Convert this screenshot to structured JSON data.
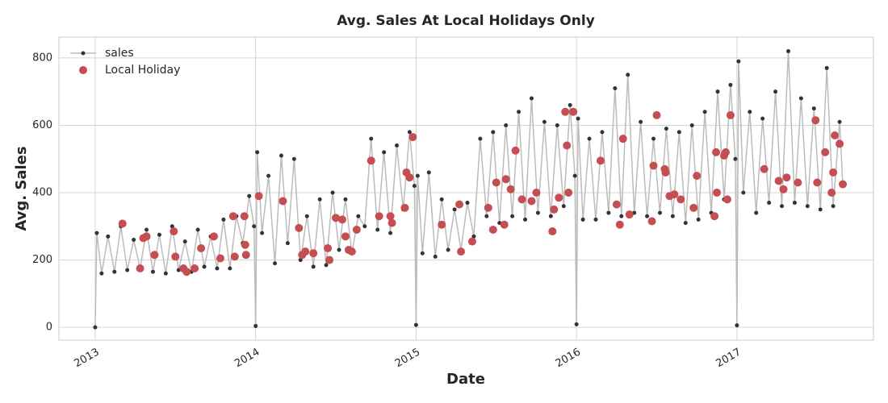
{
  "chart_data": {
    "type": "line",
    "title": "Avg. Sales At Local Holidays Only",
    "xlabel": "Date",
    "ylabel": "Avg. Sales",
    "xlim": [
      2012.774,
      2017.851
    ],
    "xticks": [
      2013,
      2014,
      2015,
      2016,
      2017
    ],
    "ylim": [
      -38,
      862
    ],
    "yticks": [
      0,
      200,
      400,
      600,
      800
    ],
    "grid": true,
    "legend": "upper left",
    "series": [
      {
        "name": "sales",
        "color": "#333333",
        "line_color": "#bbbbbb",
        "x": [
          2013.0,
          2013.01,
          2013.04,
          2013.08,
          2013.12,
          2013.16,
          2013.2,
          2013.24,
          2013.28,
          2013.32,
          2013.36,
          2013.4,
          2013.44,
          2013.48,
          2013.52,
          2013.56,
          2013.6,
          2013.64,
          2013.68,
          2013.72,
          2013.76,
          2013.8,
          2013.84,
          2013.88,
          2013.92,
          2013.96,
          2013.99,
          2014.0,
          2014.01,
          2014.04,
          2014.08,
          2014.12,
          2014.16,
          2014.2,
          2014.24,
          2014.28,
          2014.32,
          2014.36,
          2014.4,
          2014.44,
          2014.48,
          2014.52,
          2014.56,
          2014.6,
          2014.64,
          2014.68,
          2014.72,
          2014.76,
          2014.8,
          2014.84,
          2014.88,
          2014.92,
          2014.96,
          2014.99,
          2015.0,
          2015.01,
          2015.04,
          2015.08,
          2015.12,
          2015.16,
          2015.2,
          2015.24,
          2015.28,
          2015.32,
          2015.36,
          2015.4,
          2015.44,
          2015.48,
          2015.52,
          2015.56,
          2015.6,
          2015.64,
          2015.68,
          2015.72,
          2015.76,
          2015.8,
          2015.84,
          2015.88,
          2015.92,
          2015.96,
          2015.99,
          2016.0,
          2016.01,
          2016.04,
          2016.08,
          2016.12,
          2016.16,
          2016.2,
          2016.24,
          2016.28,
          2016.32,
          2016.36,
          2016.4,
          2016.44,
          2016.48,
          2016.52,
          2016.56,
          2016.6,
          2016.64,
          2016.68,
          2016.72,
          2016.76,
          2016.8,
          2016.84,
          2016.88,
          2016.92,
          2016.96,
          2016.99,
          2017.0,
          2017.01,
          2017.04,
          2017.08,
          2017.12,
          2017.16,
          2017.2,
          2017.24,
          2017.28,
          2017.32,
          2017.36,
          2017.4,
          2017.44,
          2017.48,
          2017.52,
          2017.56,
          2017.6,
          2017.64,
          2017.66
        ],
        "values": [
          0,
          280,
          160,
          270,
          165,
          300,
          170,
          260,
          175,
          290,
          165,
          275,
          160,
          300,
          170,
          255,
          165,
          290,
          180,
          270,
          175,
          320,
          175,
          330,
          250,
          390,
          300,
          4,
          520,
          280,
          450,
          190,
          510,
          250,
          500,
          200,
          330,
          180,
          380,
          185,
          400,
          230,
          380,
          220,
          330,
          300,
          560,
          290,
          520,
          280,
          540,
          350,
          580,
          420,
          7,
          450,
          220,
          460,
          210,
          380,
          230,
          350,
          230,
          370,
          270,
          560,
          330,
          580,
          310,
          600,
          330,
          640,
          320,
          680,
          340,
          610,
          330,
          600,
          360,
          660,
          450,
          9,
          620,
          320,
          560,
          320,
          580,
          340,
          710,
          330,
          750,
          340,
          610,
          330,
          560,
          340,
          590,
          330,
          580,
          310,
          600,
          320,
          640,
          340,
          700,
          380,
          720,
          500,
          6,
          790,
          400,
          640,
          340,
          620,
          370,
          700,
          360,
          820,
          370,
          680,
          360,
          650,
          350,
          770,
          360,
          610,
          420
        ]
      },
      {
        "name": "Local Holiday",
        "color": "#c44e52",
        "x": [
          2013.17,
          2013.28,
          2013.3,
          2013.32,
          2013.37,
          2013.49,
          2013.5,
          2013.55,
          2013.57,
          2013.62,
          2013.66,
          2013.74,
          2013.78,
          2013.86,
          2013.87,
          2013.93,
          2013.935,
          2013.94,
          2014.02,
          2014.17,
          2014.27,
          2014.29,
          2014.31,
          2014.36,
          2014.45,
          2014.46,
          2014.5,
          2014.54,
          2014.56,
          2014.58,
          2014.6,
          2014.63,
          2014.72,
          2014.77,
          2014.84,
          2014.85,
          2014.93,
          2014.94,
          2014.96,
          2014.98,
          2015.16,
          2015.27,
          2015.28,
          2015.35,
          2015.45,
          2015.48,
          2015.5,
          2015.55,
          2015.56,
          2015.59,
          2015.62,
          2015.66,
          2015.72,
          2015.75,
          2015.85,
          2015.86,
          2015.89,
          2015.93,
          2015.94,
          2015.95,
          2015.98,
          2016.15,
          2016.25,
          2016.27,
          2016.29,
          2016.33,
          2016.47,
          2016.48,
          2016.5,
          2016.55,
          2016.555,
          2016.58,
          2016.61,
          2016.65,
          2016.73,
          2016.75,
          2016.86,
          2016.87,
          2016.875,
          2016.92,
          2016.93,
          2016.94,
          2016.96,
          2017.17,
          2017.26,
          2017.29,
          2017.31,
          2017.38,
          2017.49,
          2017.5,
          2017.55,
          2017.59,
          2017.6,
          2017.61,
          2017.64,
          2017.66
        ],
        "values": [
          308,
          175,
          265,
          270,
          215,
          285,
          210,
          175,
          165,
          175,
          235,
          270,
          205,
          330,
          210,
          330,
          245,
          215,
          390,
          375,
          295,
          215,
          225,
          220,
          235,
          200,
          325,
          320,
          270,
          230,
          225,
          290,
          495,
          330,
          330,
          310,
          355,
          460,
          445,
          565,
          305,
          365,
          225,
          255,
          355,
          290,
          430,
          305,
          440,
          410,
          525,
          380,
          375,
          400,
          285,
          350,
          385,
          640,
          540,
          400,
          640,
          495,
          365,
          305,
          560,
          335,
          315,
          480,
          630,
          470,
          460,
          390,
          395,
          380,
          355,
          450,
          330,
          520,
          400,
          510,
          520,
          380,
          630,
          470,
          435,
          410,
          445,
          430,
          615,
          430,
          520,
          400,
          460,
          570,
          545,
          425
        ]
      }
    ]
  }
}
